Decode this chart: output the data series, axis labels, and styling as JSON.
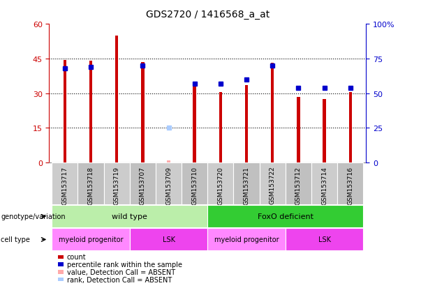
{
  "title": "GDS2720 / 1416568_a_at",
  "samples": [
    "GSM153717",
    "GSM153718",
    "GSM153719",
    "GSM153707",
    "GSM153709",
    "GSM153710",
    "GSM153720",
    "GSM153721",
    "GSM153722",
    "GSM153712",
    "GSM153714",
    "GSM153716"
  ],
  "counts": [
    44.5,
    44.0,
    55.0,
    43.5,
    null,
    33.0,
    30.5,
    33.5,
    43.0,
    28.5,
    27.5,
    30.5
  ],
  "absent_count": [
    null,
    null,
    null,
    null,
    0.8,
    null,
    null,
    null,
    null,
    null,
    null,
    null
  ],
  "percentile_ranks": [
    68,
    69,
    null,
    70,
    null,
    57,
    57,
    60,
    70,
    54,
    54,
    54
  ],
  "absent_rank": [
    null,
    null,
    null,
    null,
    25,
    null,
    null,
    null,
    null,
    null,
    null,
    null
  ],
  "ylim_left": [
    0,
    60
  ],
  "ylim_right": [
    0,
    100
  ],
  "yticks_left": [
    0,
    15,
    30,
    45,
    60
  ],
  "yticks_right": [
    0,
    25,
    50,
    75,
    100
  ],
  "yticklabels_right": [
    "0",
    "25",
    "50",
    "75",
    "100%"
  ],
  "genotype_groups": [
    {
      "label": "wild type",
      "start": 0,
      "end": 5,
      "color": "#BBEEAA"
    },
    {
      "label": "FoxO deficient",
      "start": 6,
      "end": 11,
      "color": "#33CC33"
    }
  ],
  "cell_type_groups": [
    {
      "label": "myeloid progenitor",
      "start": 0,
      "end": 2,
      "color": "#FF88FF"
    },
    {
      "label": "LSK",
      "start": 3,
      "end": 5,
      "color": "#EE44EE"
    },
    {
      "label": "myeloid progenitor",
      "start": 6,
      "end": 8,
      "color": "#FF88FF"
    },
    {
      "label": "LSK",
      "start": 9,
      "end": 11,
      "color": "#EE44EE"
    }
  ],
  "bar_color": "#CC0000",
  "absent_bar_color": "#FFAAAA",
  "rank_color": "#0000CC",
  "absent_rank_color": "#AACCFF",
  "background_color": "#FFFFFF",
  "axis_color_left": "#CC0000",
  "axis_color_right": "#0000CC",
  "sample_bg_color": "#CCCCCC",
  "legend_items": [
    {
      "label": "count",
      "color": "#CC0000"
    },
    {
      "label": "percentile rank within the sample",
      "color": "#0000CC"
    },
    {
      "label": "value, Detection Call = ABSENT",
      "color": "#FFAAAA"
    },
    {
      "label": "rank, Detection Call = ABSENT",
      "color": "#AACCFF"
    }
  ]
}
